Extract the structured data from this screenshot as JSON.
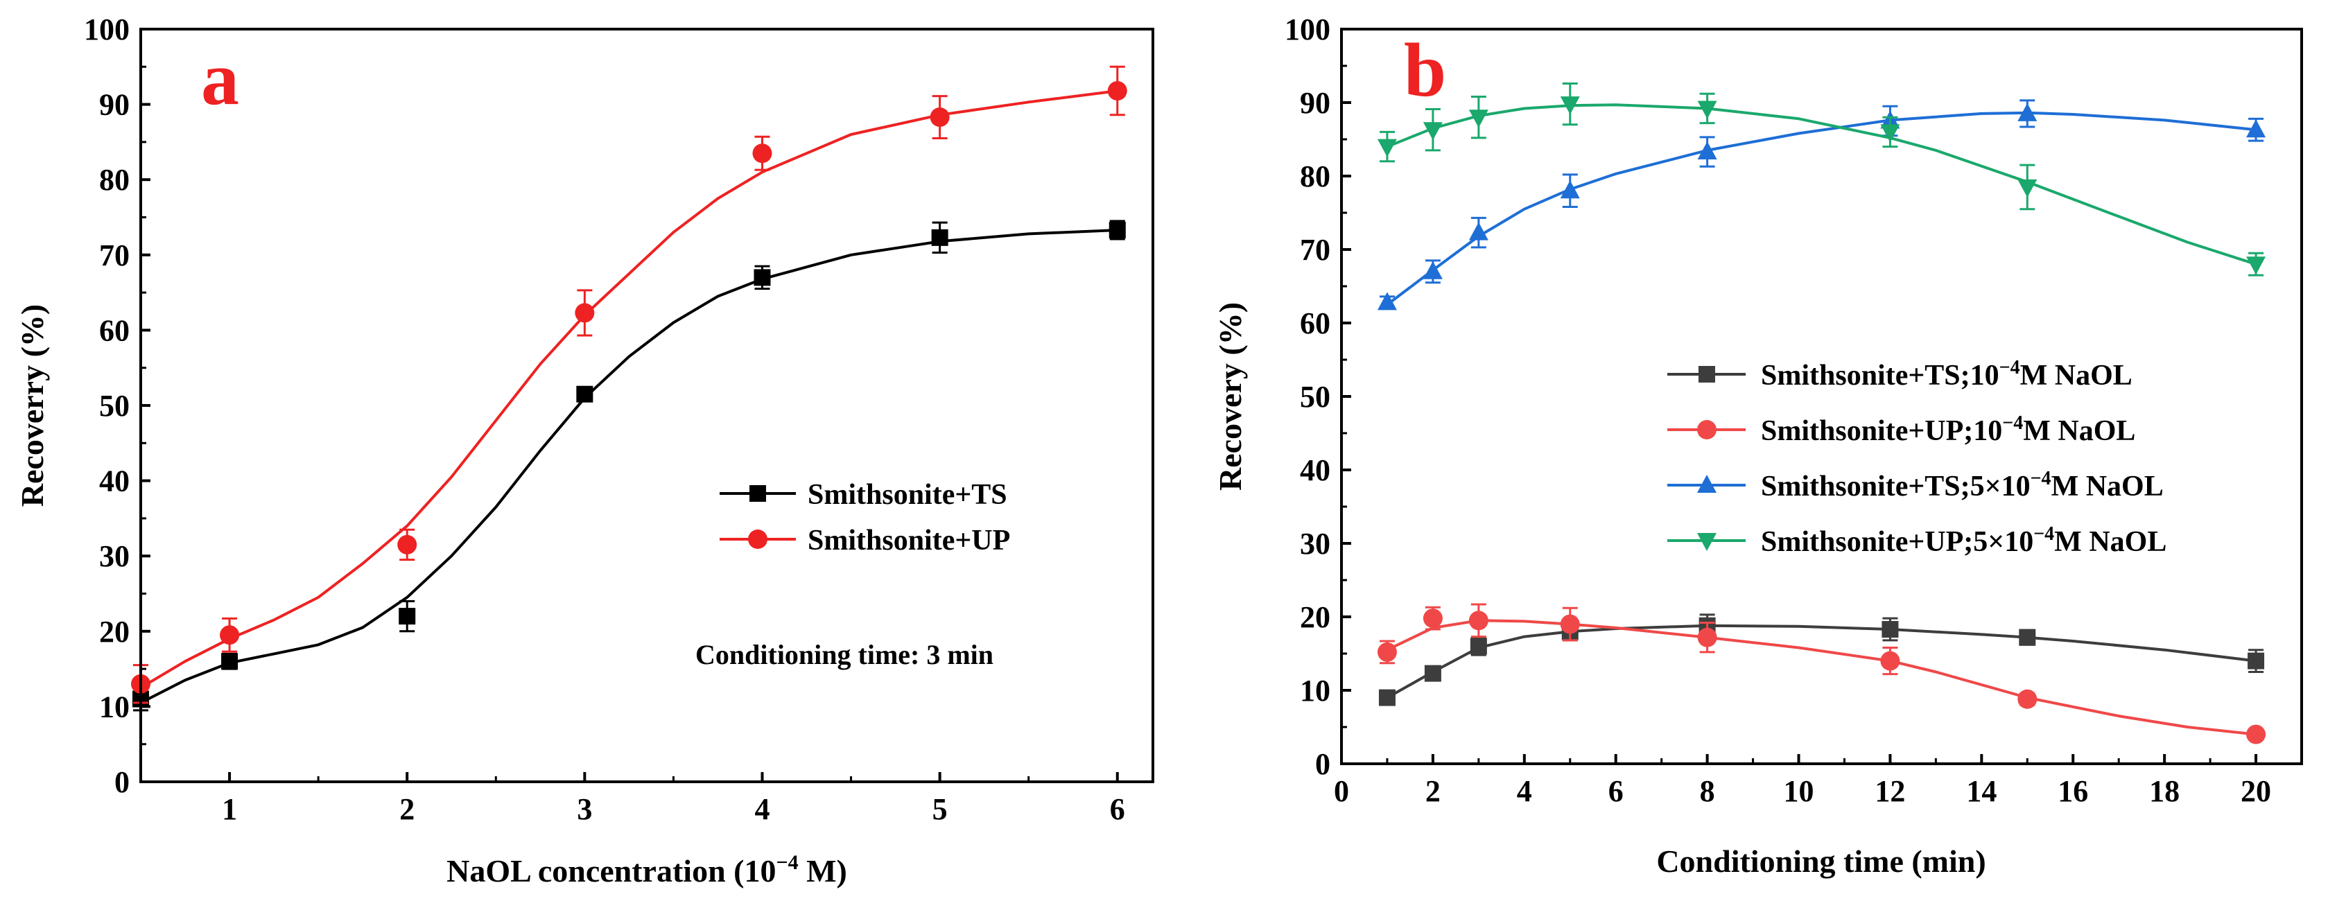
{
  "chart_data": [
    {
      "panel": "a",
      "type": "scatter",
      "panel_label": "a",
      "xlabel": "NaOL concentration (10",
      "xlabel_sup": "−4",
      "xlabel_suffix": " M)",
      "ylabel": "Recoverry (%)",
      "xlim": [
        0.5,
        6.2
      ],
      "ylim": [
        0,
        100
      ],
      "xticks": [
        1,
        2,
        3,
        4,
        5,
        6
      ],
      "yticks": [
        0,
        10,
        20,
        30,
        40,
        50,
        60,
        70,
        80,
        90,
        100
      ],
      "legend_position": "middle-right",
      "annotation": "Conditioning time: 3 min",
      "series": [
        {
          "name": "Smithsonite+TS",
          "color": "#000000",
          "marker": "square",
          "x": [
            0.5,
            1,
            2,
            3,
            4,
            5,
            6
          ],
          "y": [
            11,
            16,
            22,
            51.5,
            67,
            72.3,
            73.3
          ],
          "err": [
            1.5,
            1,
            2,
            0.8,
            1.5,
            2,
            1.2
          ],
          "fit": [
            [
              0.5,
              10.5
            ],
            [
              0.75,
              13.5
            ],
            [
              1,
              15.8
            ],
            [
              1.25,
              17
            ],
            [
              1.5,
              18.2
            ],
            [
              1.75,
              20.5
            ],
            [
              2,
              24.5
            ],
            [
              2.25,
              30
            ],
            [
              2.5,
              36.5
            ],
            [
              2.75,
              44
            ],
            [
              3,
              51
            ],
            [
              3.25,
              56.5
            ],
            [
              3.5,
              61
            ],
            [
              3.75,
              64.5
            ],
            [
              4,
              66.8
            ],
            [
              4.5,
              70
            ],
            [
              5,
              71.8
            ],
            [
              5.5,
              72.8
            ],
            [
              6,
              73.3
            ]
          ]
        },
        {
          "name": "Smithsonite+UP",
          "color": "#ee2222",
          "marker": "circle",
          "x": [
            0.5,
            1,
            2,
            3,
            4,
            5,
            6
          ],
          "y": [
            13,
            19.5,
            31.5,
            62.3,
            83.5,
            88.3,
            91.8
          ],
          "err": [
            2.5,
            2.2,
            2,
            3,
            2.2,
            2.8,
            3.2
          ],
          "fit": [
            [
              0.5,
              12.5
            ],
            [
              0.75,
              16
            ],
            [
              1,
              19
            ],
            [
              1.25,
              21.5
            ],
            [
              1.5,
              24.5
            ],
            [
              1.75,
              29
            ],
            [
              2,
              34
            ],
            [
              2.25,
              40.5
            ],
            [
              2.5,
              48
            ],
            [
              2.75,
              55.5
            ],
            [
              3,
              62
            ],
            [
              3.25,
              67.5
            ],
            [
              3.5,
              73
            ],
            [
              3.75,
              77.5
            ],
            [
              4,
              81
            ],
            [
              4.5,
              86
            ],
            [
              5,
              88.6
            ],
            [
              5.5,
              90.3
            ],
            [
              6,
              91.8
            ]
          ]
        }
      ]
    },
    {
      "panel": "b",
      "type": "line",
      "panel_label": "b",
      "xlabel": "Conditioning time (min)",
      "ylabel": "Recovery (%)",
      "xlim": [
        0,
        21
      ],
      "ylim": [
        0,
        100
      ],
      "xticks": [
        0,
        2,
        4,
        6,
        8,
        10,
        12,
        14,
        16,
        18,
        20
      ],
      "yticks": [
        0,
        10,
        20,
        30,
        40,
        50,
        60,
        70,
        80,
        90,
        100
      ],
      "legend_position": "center-right",
      "series": [
        {
          "name_main": "Smithsonite+TS;10",
          "name_sup": "−4",
          "name_tail": "M NaOL",
          "color": "#3d3d3d",
          "marker": "square",
          "x": [
            1,
            2,
            3,
            5,
            8,
            12,
            15,
            20
          ],
          "y": [
            9,
            12.3,
            16,
            18,
            18.8,
            18.3,
            17.2,
            14
          ],
          "err": [
            0.8,
            0.8,
            1.2,
            1.2,
            1.5,
            1.5,
            1,
            1.5
          ],
          "fit": [
            [
              1,
              9
            ],
            [
              2,
              12.5
            ],
            [
              3,
              15.8
            ],
            [
              4,
              17.3
            ],
            [
              5,
              18
            ],
            [
              6,
              18.4
            ],
            [
              8,
              18.8
            ],
            [
              10,
              18.7
            ],
            [
              12,
              18.3
            ],
            [
              14,
              17.6
            ],
            [
              15,
              17.2
            ],
            [
              16,
              16.7
            ],
            [
              18,
              15.5
            ],
            [
              20,
              14
            ]
          ]
        },
        {
          "name_main": "Smithsonite+UP;10",
          "name_sup": "−4",
          "name_tail": "M NaOL",
          "color": "#f04848",
          "marker": "circle",
          "x": [
            1,
            2,
            3,
            5,
            8,
            12,
            15,
            20
          ],
          "y": [
            15.2,
            19.8,
            19.5,
            19,
            17.2,
            14,
            8.8,
            4
          ],
          "err": [
            1.5,
            1.5,
            2.2,
            2.2,
            2,
            1.8,
            0.8,
            0.6
          ],
          "fit": [
            [
              1,
              15.5
            ],
            [
              2,
              18.5
            ],
            [
              3,
              19.5
            ],
            [
              4,
              19.4
            ],
            [
              5,
              19
            ],
            [
              6,
              18.5
            ],
            [
              8,
              17.2
            ],
            [
              10,
              15.8
            ],
            [
              12,
              14
            ],
            [
              13,
              12.5
            ],
            [
              15,
              9
            ],
            [
              17,
              6.5
            ],
            [
              18.5,
              5
            ],
            [
              20,
              4
            ]
          ]
        },
        {
          "name_main": "Smithsonite+TS;5×10",
          "name_sup": "−4",
          "name_tail": "M NaOL",
          "color": "#1e6ed6",
          "marker": "triangle-up",
          "x": [
            1,
            2,
            3,
            5,
            8,
            12,
            15,
            20
          ],
          "y": [
            62.8,
            67,
            72.3,
            78,
            83.3,
            87.5,
            88.5,
            86.3
          ],
          "err": [
            0.8,
            1.5,
            2,
            2.2,
            2,
            2,
            1.8,
            1.5
          ],
          "fit": [
            [
              1,
              62.5
            ],
            [
              2,
              67.2
            ],
            [
              3,
              71.8
            ],
            [
              4,
              75.5
            ],
            [
              5,
              78.2
            ],
            [
              6,
              80.3
            ],
            [
              8,
              83.5
            ],
            [
              10,
              85.8
            ],
            [
              12,
              87.6
            ],
            [
              14,
              88.5
            ],
            [
              15,
              88.6
            ],
            [
              16,
              88.4
            ],
            [
              18,
              87.6
            ],
            [
              20,
              86.3
            ]
          ]
        },
        {
          "name_main": "Smithsonite+UP;5×10",
          "name_sup": "−4",
          "name_tail": "M NaOL",
          "color": "#1aa86c",
          "marker": "triangle-down",
          "x": [
            1,
            2,
            3,
            5,
            8,
            12,
            15,
            20
          ],
          "y": [
            84,
            86.3,
            88,
            89.8,
            89.2,
            86,
            78.5,
            68
          ],
          "err": [
            2,
            2.8,
            2.8,
            2.8,
            2,
            2,
            3,
            1.5
          ],
          "fit": [
            [
              1,
              84
            ],
            [
              2,
              86.5
            ],
            [
              3,
              88.2
            ],
            [
              4,
              89.2
            ],
            [
              5,
              89.6
            ],
            [
              6,
              89.7
            ],
            [
              8,
              89.2
            ],
            [
              10,
              87.8
            ],
            [
              12,
              85.2
            ],
            [
              13,
              83.5
            ],
            [
              15,
              79.2
            ],
            [
              17,
              74.5
            ],
            [
              18.5,
              71
            ],
            [
              20,
              68
            ]
          ]
        }
      ]
    }
  ]
}
